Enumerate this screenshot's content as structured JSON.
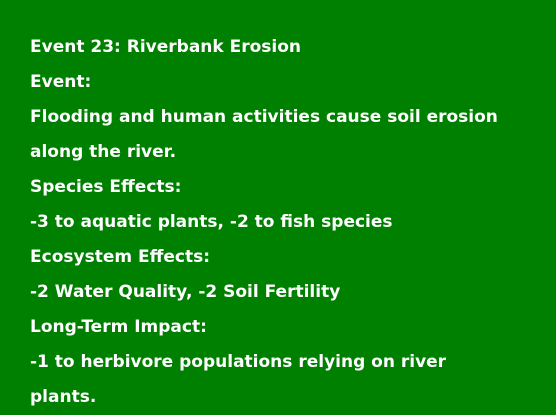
{
  "colors": {
    "background": "#008000",
    "text": "#ffffff"
  },
  "card": {
    "title": "Event 23: Riverbank Erosion",
    "event_label": "Event:",
    "event_text": "Flooding and human activities cause soil erosion along the river.",
    "species_label": "Species Effects:",
    "species_text": "-3 to aquatic plants, -2 to fish species",
    "ecosystem_label": "Ecosystem Effects:",
    "ecosystem_text": "-2 Water Quality, -2 Soil Fertility",
    "longterm_label": "Long-Term Impact:",
    "longterm_text": "-1 to herbivore populations relying on river plants."
  }
}
